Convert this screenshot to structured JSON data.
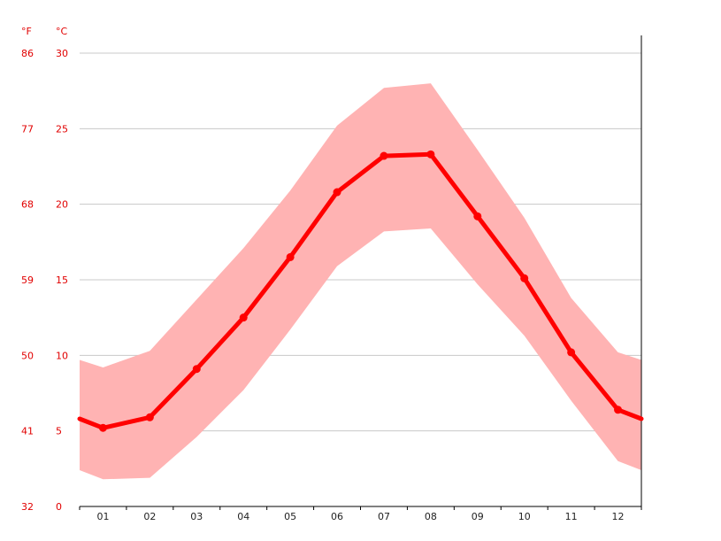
{
  "chart_data": {
    "type": "line",
    "units": {
      "fahrenheit": "°F",
      "celsius": "°C"
    },
    "x": [
      "01",
      "02",
      "03",
      "04",
      "05",
      "06",
      "07",
      "08",
      "09",
      "10",
      "11",
      "12"
    ],
    "ylim": [
      0,
      30
    ],
    "yticks_celsius": [
      "0",
      "5",
      "10",
      "15",
      "20",
      "25",
      "30"
    ],
    "yticks_fahrenheit": [
      "32",
      "41",
      "50",
      "59",
      "68",
      "77",
      "86"
    ],
    "grid": true,
    "series": [
      {
        "role": "mean",
        "values": [
          5.2,
          5.9,
          9.1,
          12.5,
          16.5,
          20.8,
          23.2,
          23.3,
          19.2,
          15.1,
          10.2,
          6.4
        ]
      },
      {
        "role": "max",
        "values": [
          9.2,
          10.3,
          13.7,
          17.1,
          20.9,
          25.2,
          27.7,
          28.0,
          23.6,
          19.1,
          13.8,
          10.2
        ]
      },
      {
        "role": "min",
        "values": [
          1.8,
          1.9,
          4.6,
          7.7,
          11.7,
          15.9,
          18.2,
          18.4,
          14.7,
          11.3,
          7.0,
          3.0
        ]
      }
    ],
    "edge_values": {
      "mean": [
        5.8,
        5.8
      ],
      "max": [
        9.7,
        9.7
      ],
      "min": [
        2.4,
        2.4
      ]
    },
    "colors": {
      "line": "#ff0000",
      "band": "#ffb3b3",
      "tick_text": "#e10000"
    }
  }
}
